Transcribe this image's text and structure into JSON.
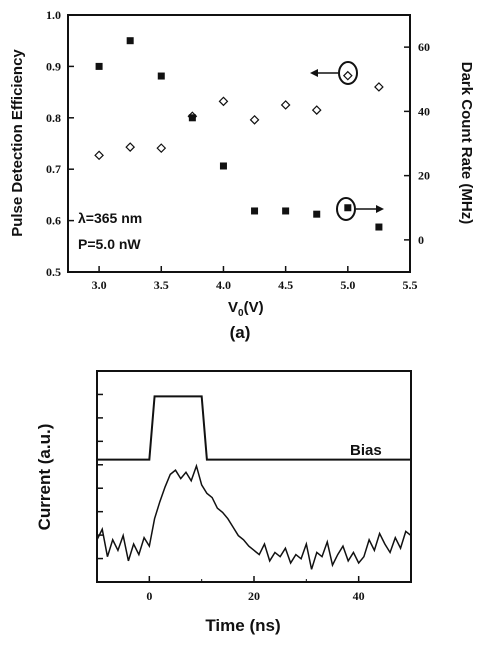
{
  "chart_data": [
    {
      "type": "scatter",
      "panel_label": "(a)",
      "xlabel_main": "V",
      "xlabel_sub": "0",
      "xlabel_unit": "(V)",
      "ylabel_left": "Pulse Detection Efficiency",
      "ylabel_right": "Dark Count Rate (MHz)",
      "xlim": [
        2.75,
        5.5
      ],
      "ylim_left": [
        0.5,
        1.0
      ],
      "ylim_right": [
        -10,
        70
      ],
      "x_ticks": [
        "3.0",
        "3.5",
        "4.0",
        "4.5",
        "5.0",
        "5.5"
      ],
      "y_left_ticks": [
        "0.5",
        "0.6",
        "0.7",
        "0.8",
        "0.9",
        "1.0"
      ],
      "y_right_ticks": [
        "0",
        "20",
        "40",
        "60"
      ],
      "annotations": [
        "λ=365 nm",
        "P=5.0 nW"
      ],
      "series": [
        {
          "marker": "open-diamond",
          "axis": "left",
          "x": [
            3.0,
            3.25,
            3.5,
            3.75,
            4.0,
            4.25,
            4.5,
            4.75,
            5.0,
            5.25
          ],
          "values": [
            0.727,
            0.743,
            0.741,
            0.803,
            0.832,
            0.796,
            0.825,
            0.815,
            0.882,
            0.86
          ]
        },
        {
          "marker": "filled-square",
          "axis": "right",
          "x": [
            3.0,
            3.25,
            3.5,
            3.75,
            4.0,
            4.25,
            4.5,
            4.75,
            5.0,
            5.25
          ],
          "values": [
            54.0,
            62.0,
            51.0,
            38.0,
            23.0,
            9.0,
            9.0,
            8.0,
            10.0,
            4.0
          ]
        }
      ],
      "grid": false
    },
    {
      "type": "line",
      "ylabel": "Current (a.u.)",
      "xlabel": "Time (ns)",
      "xlim": [
        -10,
        50
      ],
      "x_ticks": [
        "0",
        "20",
        "40"
      ],
      "series": [
        {
          "name": "Bias",
          "x": [
            -10,
            0,
            1,
            10,
            11,
            50
          ],
          "values": [
            0.58,
            0.58,
            0.88,
            0.88,
            0.58,
            0.58
          ]
        },
        {
          "name": "",
          "x": [
            -10,
            -9,
            -8,
            -7,
            -6,
            -5,
            -4,
            -3,
            -2,
            -1,
            0,
            1,
            2,
            3,
            4,
            5,
            6,
            7,
            8,
            9,
            10,
            11,
            12,
            13,
            14,
            15,
            16,
            17,
            18,
            19,
            20,
            21,
            22,
            23,
            24,
            25,
            26,
            27,
            28,
            29,
            30,
            31,
            32,
            33,
            34,
            35,
            36,
            37,
            38,
            39,
            40,
            41,
            42,
            43,
            44,
            45,
            46,
            47,
            48,
            49,
            50
          ],
          "values": [
            0.2,
            0.25,
            0.12,
            0.2,
            0.15,
            0.22,
            0.1,
            0.18,
            0.13,
            0.21,
            0.17,
            0.3,
            0.38,
            0.45,
            0.51,
            0.53,
            0.49,
            0.52,
            0.48,
            0.55,
            0.46,
            0.42,
            0.4,
            0.35,
            0.33,
            0.3,
            0.26,
            0.22,
            0.2,
            0.17,
            0.15,
            0.13,
            0.18,
            0.1,
            0.14,
            0.12,
            0.16,
            0.09,
            0.13,
            0.11,
            0.18,
            0.06,
            0.14,
            0.12,
            0.19,
            0.08,
            0.13,
            0.17,
            0.1,
            0.14,
            0.09,
            0.12,
            0.2,
            0.15,
            0.23,
            0.18,
            0.14,
            0.21,
            0.16,
            0.24,
            0.22
          ]
        }
      ],
      "grid": false
    }
  ]
}
